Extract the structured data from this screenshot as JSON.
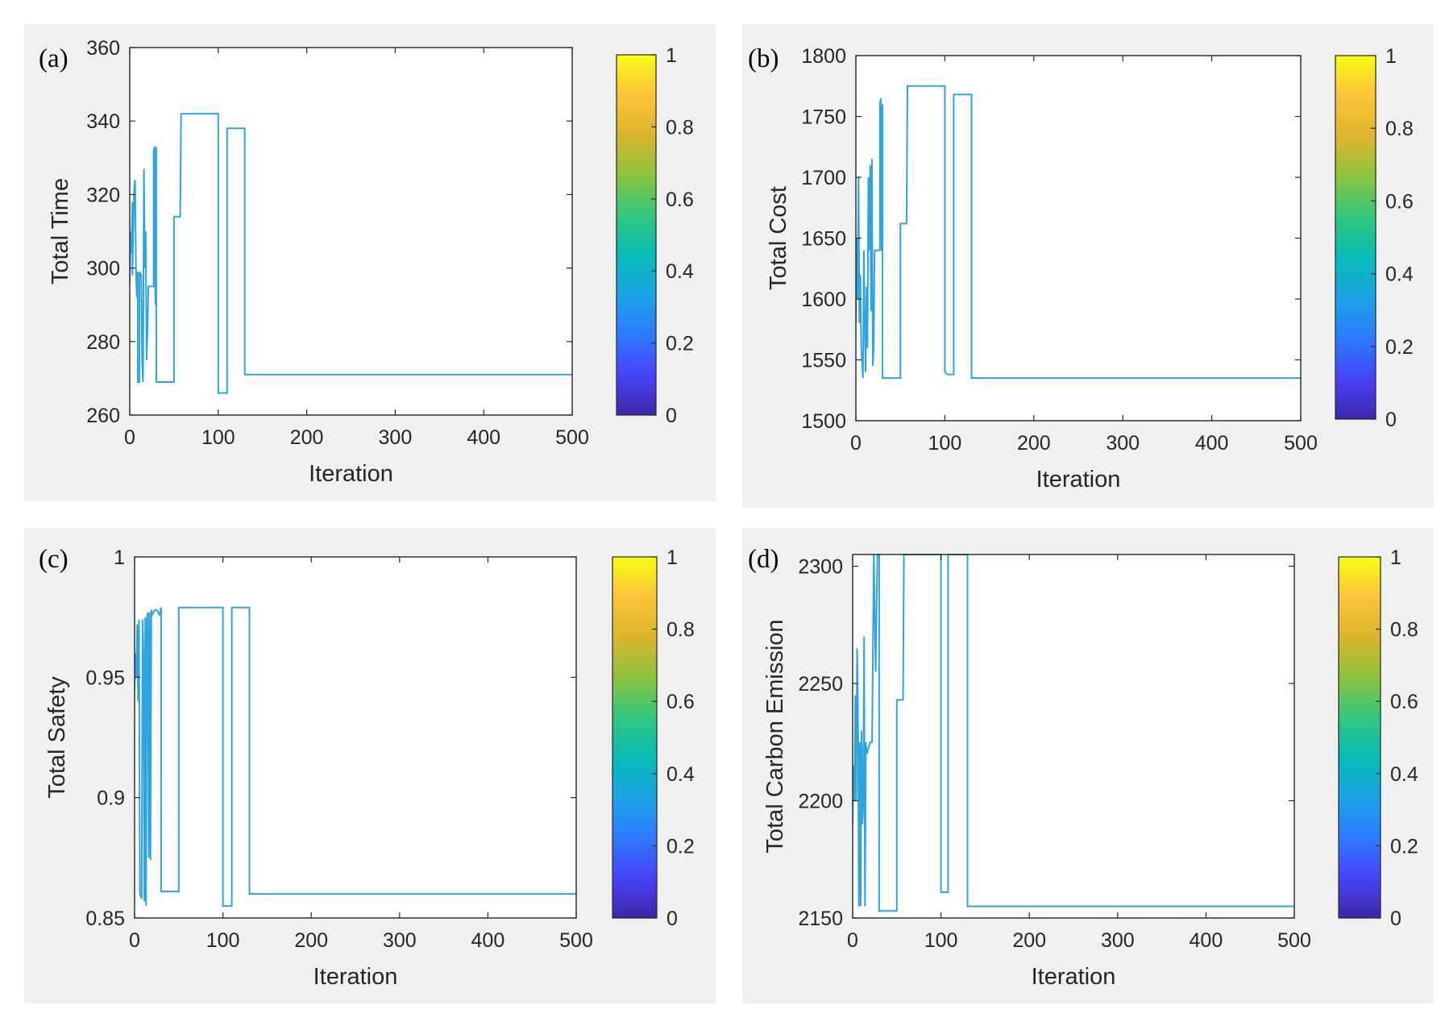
{
  "colormap_stops": [
    "#3e26a8",
    "#4743f8",
    "#2c7bfe",
    "#1ba4e6",
    "#07bab5",
    "#32c77c",
    "#8cc43d",
    "#dcb52c",
    "#fcc43a",
    "#f9fb15"
  ],
  "line_color": "#2fa3dd",
  "chart_data": [
    {
      "type": "line",
      "panel_label": "(a)",
      "xlabel": "Iteration",
      "ylabel": "Total Time",
      "xlim": [
        0,
        500
      ],
      "ylim": [
        260,
        360
      ],
      "xticks": [
        0,
        100,
        200,
        300,
        400,
        500
      ],
      "xtick_labels": [
        "0",
        "100",
        "200",
        "300",
        "400",
        "500"
      ],
      "yticks": [
        260,
        280,
        300,
        320,
        340,
        360
      ],
      "ytick_labels": [
        "260",
        "280",
        "300",
        "320",
        "340",
        "360"
      ],
      "colorbar_ticks": [
        0,
        0.2,
        0.4,
        0.6,
        0.8,
        1
      ],
      "colorbar_labels": [
        "0",
        "0.2",
        "0.4",
        "0.6",
        "0.8",
        "1"
      ],
      "series": [
        {
          "name": "Total Time",
          "points": [
            [
              0,
              296
            ],
            [
              1,
              310
            ],
            [
              2,
              304
            ],
            [
              3,
              318
            ],
            [
              3,
              298
            ],
            [
              5,
              322
            ],
            [
              6,
              324
            ],
            [
              7,
              300
            ],
            [
              8,
              292
            ],
            [
              9,
              299
            ],
            [
              9,
              269
            ],
            [
              11,
              269
            ],
            [
              11,
              299
            ],
            [
              13,
              298
            ],
            [
              14,
              274
            ],
            [
              15,
              269
            ],
            [
              16,
              327
            ],
            [
              17,
              300
            ],
            [
              18,
              310
            ],
            [
              19,
              275
            ],
            [
              20,
              283
            ],
            [
              21,
              295
            ],
            [
              27,
              295
            ],
            [
              27,
              332
            ],
            [
              28,
              333
            ],
            [
              29,
              290
            ],
            [
              30,
              333
            ],
            [
              30,
              269
            ],
            [
              50,
              269
            ],
            [
              50,
              314
            ],
            [
              55,
              314
            ],
            [
              57,
              314
            ],
            [
              58,
              342
            ],
            [
              100,
              342
            ],
            [
              100,
              266
            ],
            [
              110,
              266
            ],
            [
              110,
              338
            ],
            [
              130,
              338
            ],
            [
              130,
              271
            ],
            [
              500,
              271
            ]
          ]
        }
      ]
    },
    {
      "type": "line",
      "panel_label": "(b)",
      "xlabel": "Iteration",
      "ylabel": "Total Cost",
      "xlim": [
        0,
        500
      ],
      "ylim": [
        1500,
        1800
      ],
      "xticks": [
        0,
        100,
        200,
        300,
        400,
        500
      ],
      "xtick_labels": [
        "0",
        "100",
        "200",
        "300",
        "400",
        "500"
      ],
      "yticks": [
        1500,
        1550,
        1600,
        1650,
        1700,
        1750,
        1800
      ],
      "ytick_labels": [
        "1500",
        "1550",
        "1600",
        "1650",
        "1700",
        "1750",
        "1800"
      ],
      "colorbar_ticks": [
        0,
        0.2,
        0.4,
        0.6,
        0.8,
        1
      ],
      "colorbar_labels": [
        "0",
        "0.2",
        "0.4",
        "0.6",
        "0.8",
        "1"
      ],
      "series": [
        {
          "name": "Total Cost",
          "points": [
            [
              0,
              1580
            ],
            [
              1,
              1650
            ],
            [
              2,
              1600
            ],
            [
              3,
              1700
            ],
            [
              4,
              1580
            ],
            [
              5,
              1620
            ],
            [
              6,
              1560
            ],
            [
              8,
              1535
            ],
            [
              9,
              1640
            ],
            [
              10,
              1580
            ],
            [
              11,
              1540
            ],
            [
              12,
              1610
            ],
            [
              13,
              1560
            ],
            [
              14,
              1700
            ],
            [
              15,
              1640
            ],
            [
              16,
              1710
            ],
            [
              17,
              1590
            ],
            [
              18,
              1715
            ],
            [
              19,
              1545
            ],
            [
              20,
              1560
            ],
            [
              21,
              1640
            ],
            [
              27,
              1640
            ],
            [
              27,
              1760
            ],
            [
              28,
              1765
            ],
            [
              29,
              1640
            ],
            [
              30,
              1760
            ],
            [
              30,
              1535
            ],
            [
              50,
              1535
            ],
            [
              50,
              1662
            ],
            [
              57,
              1662
            ],
            [
              58,
              1775
            ],
            [
              100,
              1775
            ],
            [
              100,
              1540
            ],
            [
              103,
              1538
            ],
            [
              110,
              1538
            ],
            [
              110,
              1768
            ],
            [
              130,
              1768
            ],
            [
              130,
              1535
            ],
            [
              500,
              1535
            ]
          ]
        }
      ]
    },
    {
      "type": "line",
      "panel_label": "(c)",
      "xlabel": "Iteration",
      "ylabel": "Total Safety",
      "xlim": [
        0,
        500
      ],
      "ylim": [
        0.85,
        1
      ],
      "xticks": [
        0,
        100,
        200,
        300,
        400,
        500
      ],
      "xtick_labels": [
        "0",
        "100",
        "200",
        "300",
        "400",
        "500"
      ],
      "yticks": [
        0.85,
        0.9,
        0.95,
        1
      ],
      "ytick_labels": [
        "0.85",
        "0.9",
        "0.95",
        "1"
      ],
      "colorbar_ticks": [
        0,
        0.2,
        0.4,
        0.6,
        0.8,
        1
      ],
      "colorbar_labels": [
        "0",
        "0.2",
        "0.4",
        "0.6",
        "0.8",
        "1"
      ],
      "series": [
        {
          "name": "Total Safety",
          "points": [
            [
              0,
              0.945
            ],
            [
              1,
              0.96
            ],
            [
              2,
              0.95
            ],
            [
              3,
              0.972
            ],
            [
              4,
              0.94
            ],
            [
              5,
              0.974
            ],
            [
              6,
              0.86
            ],
            [
              8,
              0.858
            ],
            [
              9,
              0.974
            ],
            [
              10,
              0.96
            ],
            [
              11,
              0.857
            ],
            [
              12,
              0.975
            ],
            [
              13,
              0.855
            ],
            [
              14,
              0.974
            ],
            [
              15,
              0.977
            ],
            [
              16,
              0.875
            ],
            [
              17,
              0.977
            ],
            [
              18,
              0.874
            ],
            [
              19,
              0.978
            ],
            [
              20,
              0.976
            ],
            [
              23,
              0.978
            ],
            [
              25,
              0.978
            ],
            [
              28,
              0.976
            ],
            [
              30,
              0.979
            ],
            [
              30,
              0.861
            ],
            [
              50,
              0.861
            ],
            [
              50,
              0.979
            ],
            [
              100,
              0.979
            ],
            [
              100,
              0.855
            ],
            [
              110,
              0.855
            ],
            [
              110,
              0.979
            ],
            [
              130,
              0.979
            ],
            [
              130,
              0.86
            ],
            [
              500,
              0.86
            ]
          ]
        }
      ]
    },
    {
      "type": "line",
      "panel_label": "(d)",
      "xlabel": "Iteration",
      "ylabel": "Total Carbon Emission",
      "xlim": [
        0,
        500
      ],
      "ylim": [
        2150,
        2305
      ],
      "xticks": [
        0,
        100,
        200,
        300,
        400,
        500
      ],
      "xtick_labels": [
        "0",
        "100",
        "200",
        "300",
        "400",
        "500"
      ],
      "yticks": [
        2150,
        2200,
        2250,
        2300
      ],
      "ytick_labels": [
        "2150",
        "2200",
        "2250",
        "2300"
      ],
      "colorbar_ticks": [
        0,
        0.2,
        0.4,
        0.6,
        0.8,
        1
      ],
      "colorbar_labels": [
        "0",
        "0.2",
        "0.4",
        "0.6",
        "0.8",
        "1"
      ],
      "series": [
        {
          "name": "Total Carbon Emission",
          "points": [
            [
              0,
              2190
            ],
            [
              1,
              2215
            ],
            [
              2,
              2200
            ],
            [
              3,
              2245
            ],
            [
              4,
              2200
            ],
            [
              5,
              2265
            ],
            [
              6,
              2240
            ],
            [
              7,
              2155
            ],
            [
              8,
              2225
            ],
            [
              9,
              2155
            ],
            [
              10,
              2230
            ],
            [
              11,
              2190
            ],
            [
              12,
              2200
            ],
            [
              13,
              2270
            ],
            [
              14,
              2155
            ],
            [
              15,
              2225
            ],
            [
              16,
              2220
            ],
            [
              20,
              2225
            ],
            [
              22,
              2225
            ],
            [
              24,
              2305
            ],
            [
              26,
              2255
            ],
            [
              28,
              2305
            ],
            [
              30,
              2305
            ],
            [
              30,
              2153
            ],
            [
              50,
              2153
            ],
            [
              50,
              2243
            ],
            [
              57,
              2243
            ],
            [
              58,
              2305
            ],
            [
              100,
              2305
            ],
            [
              100,
              2161
            ],
            [
              108,
              2161
            ],
            [
              108,
              2305
            ],
            [
              130,
              2305
            ],
            [
              130,
              2155
            ],
            [
              500,
              2155
            ]
          ]
        }
      ]
    }
  ]
}
